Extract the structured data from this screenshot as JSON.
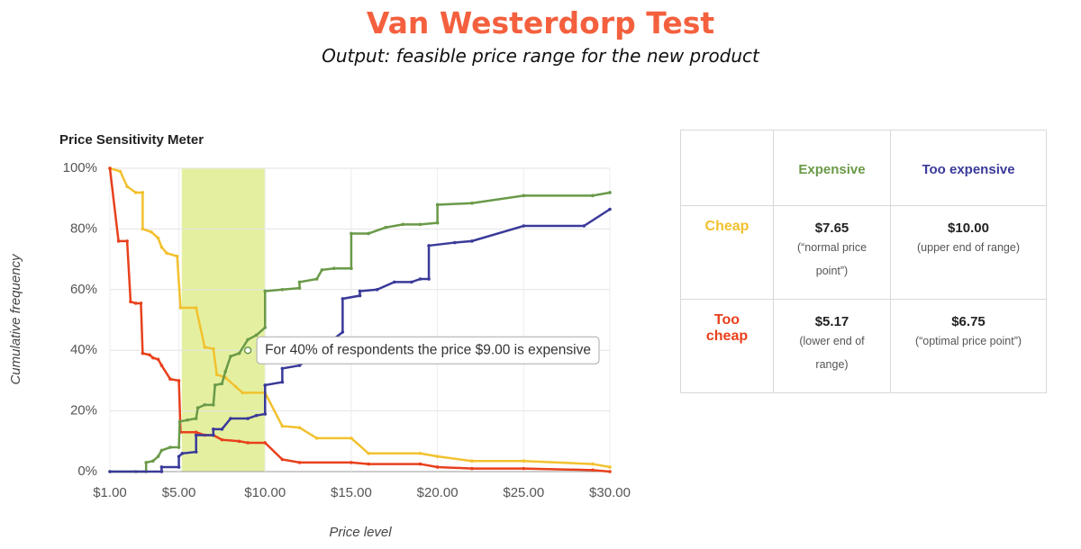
{
  "header": {
    "title": "Van Westerdorp Test",
    "subtitle": "Output: feasible price range for the new product"
  },
  "chart_data": {
    "type": "line",
    "title": "Price Sensitivity Meter",
    "x_label": "Price level",
    "y_label": "Cumulative frequency",
    "xlim": [
      1,
      30
    ],
    "ylim": [
      0,
      100
    ],
    "xticks": [
      {
        "value": 1,
        "label": "$1.00"
      },
      {
        "value": 5,
        "label": "$5.00"
      },
      {
        "value": 10,
        "label": "$10.00"
      },
      {
        "value": 15,
        "label": "$15.00"
      },
      {
        "value": 20,
        "label": "$20.00"
      },
      {
        "value": 25,
        "label": "$25.00"
      },
      {
        "value": 30,
        "label": "$30.00"
      }
    ],
    "yticks": [
      {
        "value": 0,
        "label": "0%"
      },
      {
        "value": 20,
        "label": "20%"
      },
      {
        "value": 40,
        "label": "40%"
      },
      {
        "value": 60,
        "label": "60%"
      },
      {
        "value": 80,
        "label": "80%"
      },
      {
        "value": 100,
        "label": "100%"
      }
    ],
    "grid": true,
    "highlight_range": [
      5.17,
      10
    ],
    "highlight_color": "#e4f0a0",
    "annotation": {
      "text": "For 40% of respondents the price $9.00 is expensive",
      "x": 9,
      "y": 40
    },
    "series": [
      {
        "color": "#f2c12e",
        "x": [
          1,
          1.6,
          2.0,
          2.5,
          2.9,
          2.9,
          3.4,
          3.8,
          4.0,
          4.3,
          4.9,
          5.1,
          6.0,
          6.5,
          7.0,
          7.2,
          7.7,
          8.3,
          8.7,
          10,
          11,
          12,
          13,
          15,
          16,
          19,
          20,
          22,
          25,
          29,
          30
        ],
        "values": [
          100,
          99,
          94,
          92,
          92,
          80,
          79,
          77,
          74,
          72,
          71,
          54,
          54,
          41,
          40.5,
          32,
          31,
          28,
          26,
          26,
          15,
          14.5,
          11,
          11,
          6,
          6,
          5,
          3.5,
          3.5,
          2.5,
          1.5
        ]
      },
      {
        "color": "#e8401c",
        "x": [
          1,
          1.5,
          2.0,
          2.2,
          2.5,
          2.8,
          2.9,
          3.3,
          3.5,
          3.8,
          4.0,
          4.5,
          5.0,
          5.1,
          6.0,
          6.5,
          7.0,
          7.5,
          8.5,
          9.0,
          10,
          11,
          12,
          15,
          16,
          19,
          20,
          22,
          25,
          29,
          30
        ],
        "values": [
          100,
          76,
          76,
          56,
          55.5,
          55.5,
          39,
          38.5,
          37.5,
          37,
          35,
          30.5,
          30,
          13,
          13,
          12,
          12,
          10.5,
          10,
          9.5,
          9.5,
          4,
          3,
          3,
          2.5,
          2.5,
          1.5,
          1,
          1,
          0.5,
          0
        ]
      },
      {
        "color": "#6a9a48",
        "x": [
          1,
          2.5,
          3.1,
          3.1,
          3.5,
          3.8,
          4.0,
          4.5,
          5.0,
          5.05,
          5.5,
          6.0,
          6.1,
          6.5,
          7.0,
          7.1,
          7.5,
          7.7,
          8.0,
          8.5,
          9.0,
          9.5,
          10,
          10,
          11,
          12,
          12,
          13,
          13.3,
          14,
          15,
          15,
          16,
          17,
          18,
          19,
          20,
          20,
          22,
          25,
          29,
          30
        ],
        "values": [
          0,
          0,
          0,
          3,
          3.5,
          5,
          7,
          8,
          8,
          16.5,
          17,
          17.5,
          21,
          22,
          22,
          28.5,
          29,
          33,
          38,
          39,
          43.5,
          45,
          47.5,
          59.5,
          60,
          60.5,
          62.5,
          63.5,
          66.5,
          67,
          67,
          78.5,
          78.5,
          80.5,
          81.5,
          81.5,
          82,
          88,
          88.5,
          91,
          91,
          92
        ]
      },
      {
        "color": "#3a3a9a",
        "x": [
          1,
          4.0,
          4.0,
          5.0,
          5.0,
          5.2,
          6.0,
          6.0,
          7.0,
          7.0,
          7.5,
          8.0,
          9.0,
          9.5,
          10,
          10,
          11,
          11,
          12,
          14.5,
          14.5,
          15.5,
          15.5,
          16.5,
          17.5,
          18.5,
          19,
          19.5,
          19.5,
          21,
          22,
          25,
          28.5,
          30
        ],
        "values": [
          0,
          0,
          1.5,
          1.5,
          5,
          6,
          6.5,
          12,
          12,
          14,
          14,
          17.5,
          17.5,
          18.5,
          19,
          28.5,
          29.5,
          34,
          35,
          46,
          57,
          58,
          59.5,
          60,
          62.5,
          62.5,
          63.5,
          63.5,
          74.5,
          75.5,
          76,
          81,
          81,
          86.5
        ]
      }
    ]
  },
  "table": {
    "columns": [
      "Expensive",
      "Too expensive"
    ],
    "rows": [
      {
        "label": "Cheap",
        "cells": [
          {
            "value": "$7.65",
            "note": "(“normal price point”)"
          },
          {
            "value": "$10.00",
            "note": "(upper end of range)"
          }
        ]
      },
      {
        "label": "Too cheap",
        "cells": [
          {
            "value": "$5.17",
            "note": "(lower end of range)"
          },
          {
            "value": "$6.75",
            "note": "(“optimal price point”)"
          }
        ]
      }
    ]
  }
}
